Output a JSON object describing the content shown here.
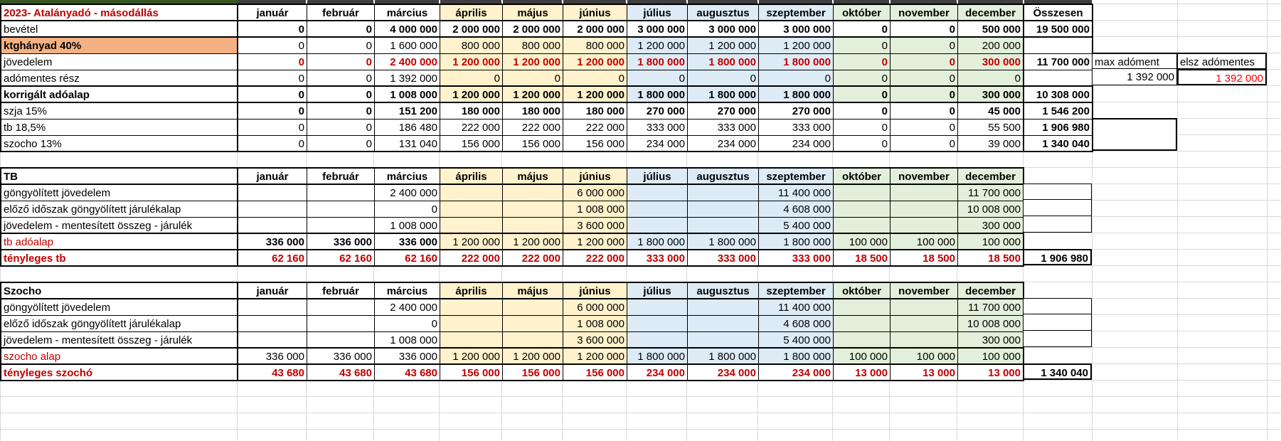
{
  "accent_colors": {
    "group_yellow": "#FFF2CC",
    "group_blue": "#DDEBF7",
    "group_green": "#E2EFDA",
    "label_orange": "#F4B183",
    "dark_red_text": "#c00000",
    "bright_red_text": "#ff0000",
    "strip_green": "#375623",
    "strip_gray": "#3f3f3f",
    "error_indicator_green": "#1e8c1e"
  },
  "months": [
    "január",
    "február",
    "március",
    "április",
    "május",
    "június",
    "július",
    "augusztus",
    "szeptember",
    "október",
    "november",
    "december"
  ],
  "section1": {
    "title": "2023- Atalányadó - másodállás",
    "total_header": "Összesen",
    "side_headers": [
      "max adóment",
      "elsz adómentes"
    ],
    "side_values": [
      "1 392 000",
      "1 392 000"
    ],
    "rows": [
      {
        "label": "bevétel",
        "values": [
          "0",
          "0",
          "4 000 000",
          "2 000 000",
          "2 000 000",
          "2 000 000",
          "3 000 000",
          "3 000 000",
          "3 000 000",
          "0",
          "0",
          "500 000"
        ],
        "total": "19 500 000"
      },
      {
        "label": "ktghányad 40%",
        "values": [
          "0",
          "0",
          "1 600 000",
          "800 000",
          "800 000",
          "800 000",
          "1 200 000",
          "1 200 000",
          "1 200 000",
          "0",
          "0",
          "200 000"
        ],
        "total": ""
      },
      {
        "label": "jövedelem",
        "values": [
          "0",
          "0",
          "2 400 000",
          "1 200 000",
          "1 200 000",
          "1 200 000",
          "1 800 000",
          "1 800 000",
          "1 800 000",
          "0",
          "0",
          "300 000"
        ],
        "total": "11 700 000"
      },
      {
        "label": "adómentes rész",
        "values": [
          "0",
          "0",
          "1 392 000",
          "0",
          "0",
          "0",
          "0",
          "0",
          "0",
          "0",
          "0",
          "0"
        ],
        "total": ""
      },
      {
        "label": "korrigált adóalap",
        "values": [
          "0",
          "0",
          "1 008 000",
          "1 200 000",
          "1 200 000",
          "1 200 000",
          "1 800 000",
          "1 800 000",
          "1 800 000",
          "0",
          "0",
          "300 000"
        ],
        "total": "10 308 000"
      },
      {
        "label": "szja 15%",
        "values": [
          "0",
          "0",
          "151 200",
          "180 000",
          "180 000",
          "180 000",
          "270 000",
          "270 000",
          "270 000",
          "0",
          "0",
          "45 000"
        ],
        "total": "1 546 200"
      },
      {
        "label": "tb 18,5%",
        "values": [
          "0",
          "0",
          "186 480",
          "222 000",
          "222 000",
          "222 000",
          "333 000",
          "333 000",
          "333 000",
          "0",
          "0",
          "55 500"
        ],
        "total": "1 906 980"
      },
      {
        "label": "szocho 13%",
        "values": [
          "0",
          "0",
          "131 040",
          "156 000",
          "156 000",
          "156 000",
          "234 000",
          "234 000",
          "234 000",
          "0",
          "0",
          "39 000"
        ],
        "total": "1 340 040"
      }
    ]
  },
  "section2": {
    "title": "TB",
    "rows": [
      {
        "label": "göngyölített jövedelem",
        "values": [
          "",
          "",
          "2 400 000",
          "",
          "",
          "6 000 000",
          "",
          "",
          "11 400 000",
          "",
          "",
          "11 700 000"
        ],
        "total": ""
      },
      {
        "label": "előző időszak göngyölített járulékalap",
        "values": [
          "",
          "",
          "0",
          "",
          "",
          "1 008 000",
          "",
          "",
          "4 608 000",
          "",
          "",
          "10 008 000"
        ],
        "total": ""
      },
      {
        "label": "jövedelem - mentesített összeg - járulék",
        "values": [
          "",
          "",
          "1 008 000",
          "",
          "",
          "3 600 000",
          "",
          "",
          "5 400 000",
          "",
          "",
          "300 000"
        ],
        "total": ""
      },
      {
        "label": "tb adóalap",
        "values": [
          "336 000",
          "336 000",
          "336 000",
          "1 200 000",
          "1 200 000",
          "1 200 000",
          "1 800 000",
          "1 800 000",
          "1 800 000",
          "100 000",
          "100 000",
          "100 000"
        ],
        "total": ""
      },
      {
        "label": "tényleges tb",
        "values": [
          "62 160",
          "62 160",
          "62 160",
          "222 000",
          "222 000",
          "222 000",
          "333 000",
          "333 000",
          "333 000",
          "18 500",
          "18 500",
          "18 500"
        ],
        "total": "1 906 980"
      }
    ]
  },
  "section3": {
    "title": "Szocho",
    "rows": [
      {
        "label": "göngyölített jövedelem",
        "values": [
          "",
          "",
          "2 400 000",
          "",
          "",
          "6 000 000",
          "",
          "",
          "11 400 000",
          "",
          "",
          "11 700 000"
        ],
        "total": ""
      },
      {
        "label": "előző időszak göngyölített járulékalap",
        "values": [
          "",
          "",
          "0",
          "",
          "",
          "1 008 000",
          "",
          "",
          "4 608 000",
          "",
          "",
          "10 008 000"
        ],
        "total": ""
      },
      {
        "label": "jövedelem - mentesített összeg - járulék",
        "values": [
          "",
          "",
          "1 008 000",
          "",
          "",
          "3 600 000",
          "",
          "",
          "5 400 000",
          "",
          "",
          "300 000"
        ],
        "total": ""
      },
      {
        "label": "szocho alap",
        "values": [
          "336 000",
          "336 000",
          "336 000",
          "1 200 000",
          "1 200 000",
          "1 200 000",
          "1 800 000",
          "1 800 000",
          "1 800 000",
          "100 000",
          "100 000",
          "100 000"
        ],
        "total": ""
      },
      {
        "label": "tényleges szochó",
        "values": [
          "43 680",
          "43 680",
          "43 680",
          "156 000",
          "156 000",
          "156 000",
          "234 000",
          "234 000",
          "234 000",
          "13 000",
          "13 000",
          "13 000"
        ],
        "total": "1 340 040"
      }
    ]
  }
}
